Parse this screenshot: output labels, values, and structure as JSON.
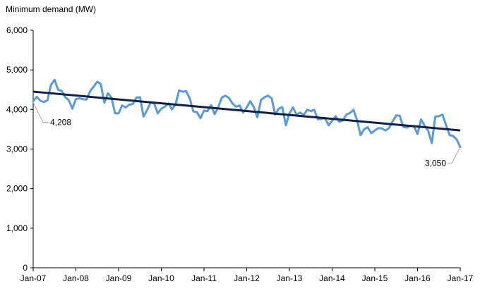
{
  "chart_data": {
    "type": "line",
    "ylabel": "Minimum demand (MW)",
    "ylim": [
      0,
      6000
    ],
    "yticks": [
      "0",
      "1,000",
      "2,000",
      "3,000",
      "4,000",
      "5,000",
      "6,000"
    ],
    "yticks_values": [
      0,
      1000,
      2000,
      3000,
      4000,
      5000,
      6000
    ],
    "xticks": [
      "Jan-07",
      "Jan-08",
      "Jan-09",
      "Jan-10",
      "Jan-11",
      "Jan-12",
      "Jan-13",
      "Jan-14",
      "Jan-15",
      "Jan-16",
      "Jan-17"
    ],
    "x_start": "Jan-07",
    "x_end": "Jan-17",
    "grid": false,
    "series": [
      {
        "color": "#5B9BD5",
        "values": [
          4208,
          4320,
          4220,
          4190,
          4230,
          4620,
          4750,
          4500,
          4470,
          4310,
          4240,
          4020,
          4260,
          4280,
          4260,
          4250,
          4460,
          4580,
          4700,
          4640,
          4170,
          4410,
          4300,
          3900,
          3900,
          4100,
          4050,
          4120,
          4140,
          4300,
          4310,
          3820,
          3980,
          4180,
          4150,
          3900,
          4020,
          4070,
          4150,
          4000,
          4130,
          4480,
          4450,
          4460,
          4280,
          3950,
          3930,
          3780,
          3970,
          3960,
          4110,
          3880,
          4060,
          4300,
          4350,
          4290,
          4150,
          4070,
          4100,
          3920,
          4050,
          4210,
          4060,
          3800,
          4240,
          4310,
          4350,
          4280,
          3870,
          4020,
          4060,
          3600,
          3900,
          4050,
          3870,
          3920,
          3860,
          3990,
          3960,
          3990,
          3750,
          3760,
          3780,
          3600,
          3710,
          3830,
          3690,
          3720,
          3870,
          3910,
          3990,
          3730,
          3350,
          3500,
          3550,
          3400,
          3470,
          3530,
          3520,
          3470,
          3530,
          3700,
          3850,
          3840,
          3560,
          3540,
          3590,
          3570,
          3380,
          3750,
          3590,
          3460,
          3150,
          3820,
          3830,
          3870,
          3610,
          3350,
          3330,
          3240,
          3050
        ]
      },
      {
        "color": "#0F1F45",
        "values": [
          4450,
          3470
        ]
      }
    ],
    "annotations": [
      {
        "text": "4,208",
        "index": 0
      },
      {
        "text": "3,050",
        "index": 120
      }
    ]
  }
}
